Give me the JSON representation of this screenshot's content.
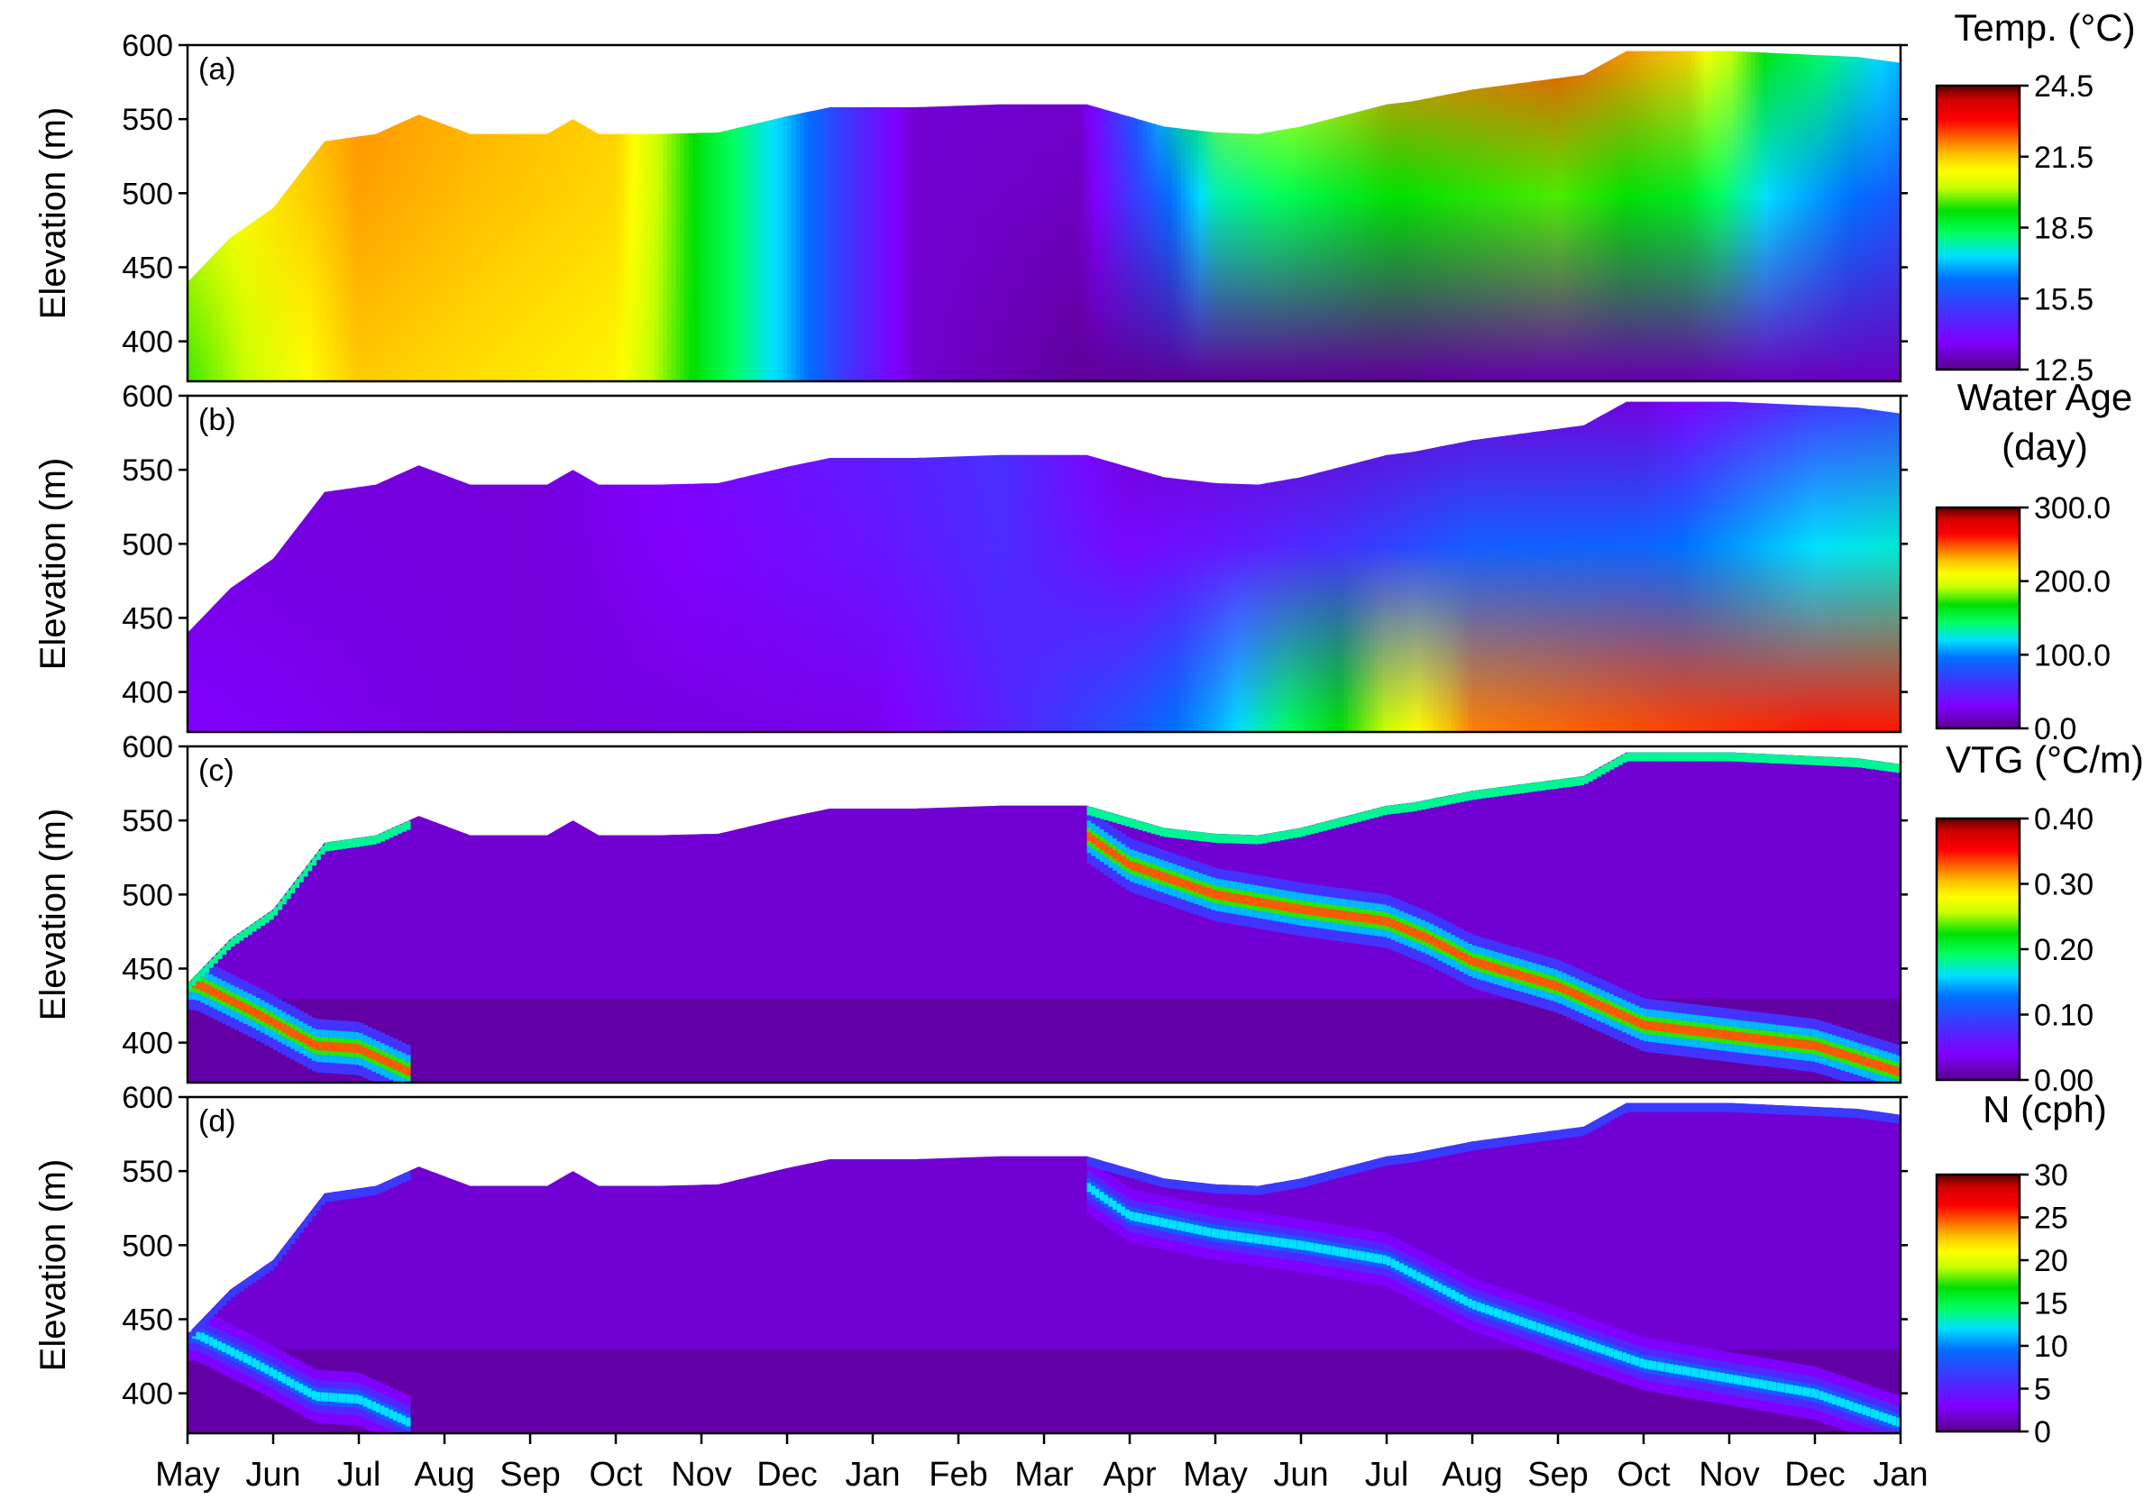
{
  "figure": {
    "x_months": [
      "May",
      "Jun",
      "Jul",
      "Aug",
      "Sep",
      "Oct",
      "Nov",
      "Dec",
      "Jan",
      "Feb",
      "Mar",
      "Apr",
      "May",
      "Jun",
      "Jul",
      "Aug",
      "Sep",
      "Oct",
      "Nov",
      "Dec",
      "Jan"
    ],
    "x_domain": [
      0,
      20
    ]
  },
  "chart_data": [
    {
      "type": "heatmap",
      "panel_label": "(a)",
      "ylabel": "Elevation (m)",
      "ylim": [
        373,
        600
      ],
      "yticks": [
        400,
        450,
        500,
        550,
        600
      ],
      "colorbar": {
        "title": [
          "Temp. (°C)"
        ],
        "min": 12.5,
        "max": 24.5,
        "tick_values": [
          12.5,
          15.5,
          18.5,
          21.5,
          24.5
        ],
        "tick_labels": [
          "12.5",
          "15.5",
          "18.5",
          "21.5",
          "24.5"
        ]
      },
      "surface_elevation": [
        [
          0,
          440
        ],
        [
          0.5,
          470
        ],
        [
          1,
          490
        ],
        [
          1.6,
          535
        ],
        [
          2.2,
          540
        ],
        [
          2.7,
          553
        ],
        [
          3.3,
          540
        ],
        [
          4.2,
          540
        ],
        [
          4.5,
          550
        ],
        [
          4.8,
          540
        ],
        [
          5.5,
          540
        ],
        [
          6.2,
          541
        ],
        [
          7,
          552
        ],
        [
          7.5,
          558
        ],
        [
          8.5,
          558
        ],
        [
          9.5,
          560
        ],
        [
          10.5,
          560
        ],
        [
          11.4,
          545
        ],
        [
          12,
          541
        ],
        [
          12.5,
          540
        ],
        [
          13,
          545
        ],
        [
          14,
          560
        ],
        [
          14.3,
          562
        ],
        [
          15,
          570
        ],
        [
          16.3,
          580
        ],
        [
          16.8,
          596
        ],
        [
          18,
          596
        ],
        [
          19.5,
          592
        ],
        [
          20,
          588
        ]
      ],
      "field_summary": [
        {
          "x": 0,
          "surface": 21,
          "bottom": 19.5
        },
        {
          "x": 2,
          "surface": 22,
          "bottom": 21.5
        },
        {
          "x": 5,
          "surface": 21.5,
          "bottom": 21
        },
        {
          "x": 6,
          "surface": 19,
          "bottom": 19
        },
        {
          "x": 7,
          "surface": 17,
          "bottom": 17
        },
        {
          "x": 7.7,
          "surface": 15,
          "bottom": 15
        },
        {
          "x": 8.5,
          "surface": 13.2,
          "bottom": 13.2
        },
        {
          "x": 10.4,
          "surface": 13.2,
          "bottom": 12.6
        },
        {
          "x": 11,
          "surface": 16,
          "bottom": 12.6
        },
        {
          "x": 12,
          "surface": 20,
          "bottom": 12.6
        },
        {
          "x": 14,
          "surface": 22,
          "bottom": 12.6
        },
        {
          "x": 16,
          "surface": 22.5,
          "bottom": 12.8
        },
        {
          "x": 17.5,
          "surface": 21.5,
          "bottom": 12.8
        },
        {
          "x": 18.5,
          "surface": 19,
          "bottom": 13
        },
        {
          "x": 20,
          "surface": 17,
          "bottom": 13
        }
      ]
    },
    {
      "type": "heatmap",
      "panel_label": "(b)",
      "ylabel": "Elevation (m)",
      "ylim": [
        373,
        600
      ],
      "yticks": [
        400,
        450,
        500,
        550,
        600
      ],
      "colorbar": {
        "title": [
          "Water Age",
          "(day)"
        ],
        "min": 0,
        "max": 300,
        "tick_values": [
          0,
          100,
          200,
          300
        ],
        "tick_labels": [
          "0.0",
          "100.0",
          "200.0",
          "300.0"
        ]
      },
      "surface_elevation": [
        [
          0,
          440
        ],
        [
          0.5,
          470
        ],
        [
          1,
          490
        ],
        [
          1.6,
          535
        ],
        [
          2.2,
          540
        ],
        [
          2.7,
          553
        ],
        [
          3.3,
          540
        ],
        [
          4.2,
          540
        ],
        [
          4.5,
          550
        ],
        [
          4.8,
          540
        ],
        [
          5.5,
          540
        ],
        [
          6.2,
          541
        ],
        [
          7,
          552
        ],
        [
          7.5,
          558
        ],
        [
          8.5,
          558
        ],
        [
          9.5,
          560
        ],
        [
          10.5,
          560
        ],
        [
          11.4,
          545
        ],
        [
          12,
          541
        ],
        [
          12.5,
          540
        ],
        [
          13,
          545
        ],
        [
          14,
          560
        ],
        [
          14.3,
          562
        ],
        [
          15,
          570
        ],
        [
          16.3,
          580
        ],
        [
          16.8,
          596
        ],
        [
          18,
          596
        ],
        [
          19.5,
          592
        ],
        [
          20,
          588
        ]
      ],
      "field_summary": [
        {
          "x": 0,
          "surface": 20,
          "bottom": 30
        },
        {
          "x": 4,
          "surface": 20,
          "bottom": 20
        },
        {
          "x": 8,
          "surface": 50,
          "bottom": 25
        },
        {
          "x": 9.5,
          "surface": 60,
          "bottom": 50
        },
        {
          "x": 11,
          "surface": 15,
          "bottom": 80
        },
        {
          "x": 12,
          "surface": 15,
          "bottom": 110
        },
        {
          "x": 13.5,
          "surface": 15,
          "bottom": 170
        },
        {
          "x": 15,
          "surface": 20,
          "bottom": 240
        },
        {
          "x": 17,
          "surface": 20,
          "bottom": 250
        },
        {
          "x": 19,
          "surface": 60,
          "bottom": 260
        },
        {
          "x": 20,
          "surface": 70,
          "bottom": 260
        }
      ]
    },
    {
      "type": "heatmap",
      "panel_label": "(c)",
      "ylabel": "Elevation (m)",
      "ylim": [
        373,
        600
      ],
      "yticks": [
        400,
        450,
        500,
        550,
        600
      ],
      "colorbar": {
        "title": [
          "VTG (°C/m)"
        ],
        "min": 0,
        "max": 0.4,
        "tick_values": [
          0,
          0.1,
          0.2,
          0.3,
          0.4
        ],
        "tick_labels": [
          "0.00",
          "0.10",
          "0.20",
          "0.30",
          "0.40"
        ]
      },
      "surface_elevation": [
        [
          0,
          440
        ],
        [
          0.5,
          470
        ],
        [
          1,
          490
        ],
        [
          1.6,
          535
        ],
        [
          2.2,
          540
        ],
        [
          2.7,
          553
        ],
        [
          3.3,
          540
        ],
        [
          4.2,
          540
        ],
        [
          4.5,
          550
        ],
        [
          4.8,
          540
        ],
        [
          5.5,
          540
        ],
        [
          6.2,
          541
        ],
        [
          7,
          552
        ],
        [
          7.5,
          558
        ],
        [
          8.5,
          558
        ],
        [
          9.5,
          560
        ],
        [
          10.5,
          560
        ],
        [
          11.4,
          545
        ],
        [
          12,
          541
        ],
        [
          12.5,
          540
        ],
        [
          13,
          545
        ],
        [
          14,
          560
        ],
        [
          14.3,
          562
        ],
        [
          15,
          570
        ],
        [
          16.3,
          580
        ],
        [
          16.8,
          596
        ],
        [
          18,
          596
        ],
        [
          19.5,
          592
        ],
        [
          20,
          588
        ]
      ],
      "thermocline": [
        [
          0.1,
          440
        ],
        [
          0.8,
          420
        ],
        [
          1.5,
          398
        ],
        [
          2,
          396
        ],
        [
          2.6,
          380
        ],
        [
          10.5,
          540
        ],
        [
          11,
          520
        ],
        [
          12,
          500
        ],
        [
          13,
          490
        ],
        [
          14,
          482
        ],
        [
          14.5,
          470
        ],
        [
          15,
          455
        ],
        [
          16,
          438
        ],
        [
          17,
          412
        ],
        [
          18,
          405
        ],
        [
          19,
          398
        ],
        [
          20,
          380
        ]
      ],
      "thermocline_peak": 0.33
    },
    {
      "type": "heatmap",
      "panel_label": "(d)",
      "ylabel": "Elevation (m)",
      "ylim": [
        373,
        600
      ],
      "yticks": [
        400,
        450,
        500,
        550,
        600
      ],
      "colorbar": {
        "title": [
          "N (cph)"
        ],
        "min": 0,
        "max": 30,
        "tick_values": [
          0,
          5,
          10,
          15,
          20,
          25,
          30
        ],
        "tick_labels": [
          "0",
          "5",
          "10",
          "15",
          "20",
          "25",
          "30"
        ]
      },
      "surface_elevation": [
        [
          0,
          440
        ],
        [
          0.5,
          470
        ],
        [
          1,
          490
        ],
        [
          1.6,
          535
        ],
        [
          2.2,
          540
        ],
        [
          2.7,
          553
        ],
        [
          3.3,
          540
        ],
        [
          4.2,
          540
        ],
        [
          4.5,
          550
        ],
        [
          4.8,
          540
        ],
        [
          5.5,
          540
        ],
        [
          6.2,
          541
        ],
        [
          7,
          552
        ],
        [
          7.5,
          558
        ],
        [
          8.5,
          558
        ],
        [
          9.5,
          560
        ],
        [
          10.5,
          560
        ],
        [
          11.4,
          545
        ],
        [
          12,
          541
        ],
        [
          12.5,
          540
        ],
        [
          13,
          545
        ],
        [
          14,
          560
        ],
        [
          14.3,
          562
        ],
        [
          15,
          570
        ],
        [
          16.3,
          580
        ],
        [
          16.8,
          596
        ],
        [
          18,
          596
        ],
        [
          19.5,
          592
        ],
        [
          20,
          588
        ]
      ],
      "thermocline": [
        [
          0.1,
          440
        ],
        [
          0.8,
          420
        ],
        [
          1.5,
          398
        ],
        [
          2,
          396
        ],
        [
          2.6,
          380
        ],
        [
          10.5,
          540
        ],
        [
          11,
          520
        ],
        [
          12,
          508
        ],
        [
          13,
          500
        ],
        [
          14,
          490
        ],
        [
          14.5,
          475
        ],
        [
          15,
          460
        ],
        [
          16,
          440
        ],
        [
          17,
          420
        ],
        [
          18,
          410
        ],
        [
          19,
          400
        ],
        [
          20,
          380
        ]
      ],
      "thermocline_peak": 12
    }
  ]
}
